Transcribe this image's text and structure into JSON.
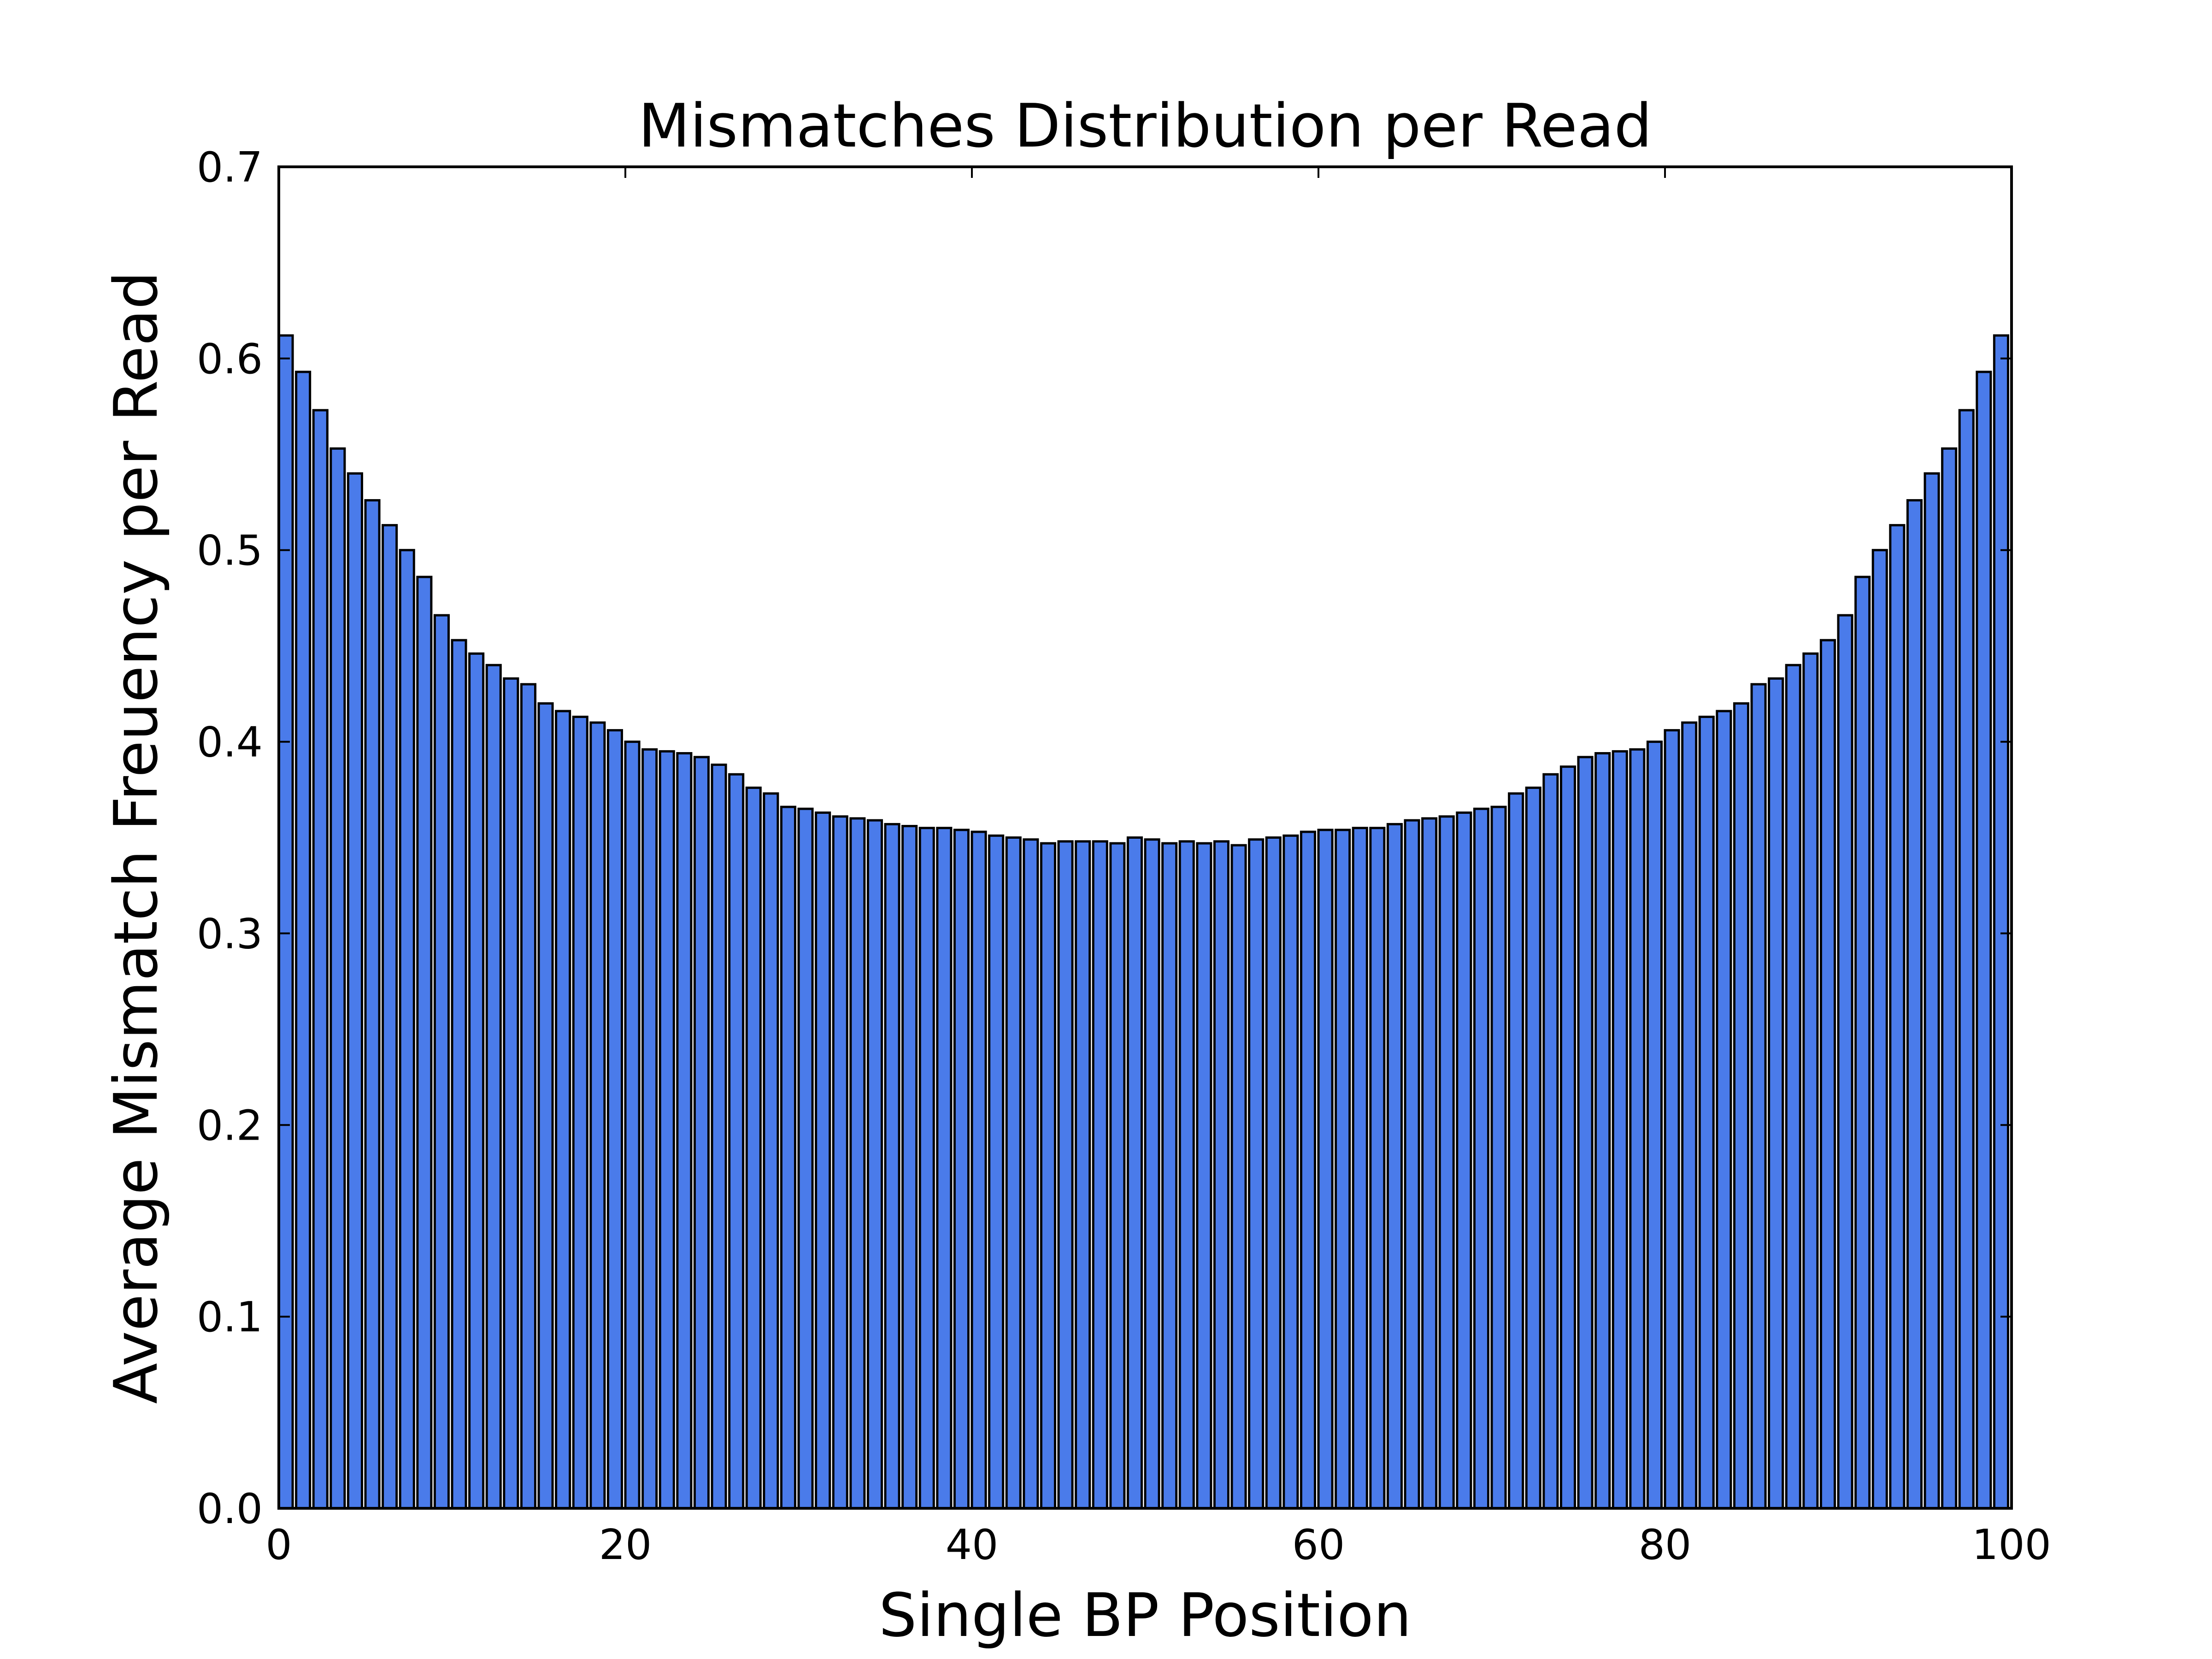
{
  "chart_data": {
    "type": "bar",
    "title": "Mismatches Distribution per Read",
    "xlabel": "Single BP Position",
    "ylabel": "Average Mismatch Freuency per Read",
    "xlim": [
      0,
      100
    ],
    "ylim": [
      0,
      0.7
    ],
    "xticks": [
      "0",
      "20",
      "40",
      "60",
      "80",
      "100"
    ],
    "yticks": [
      "0.0",
      "0.1",
      "0.2",
      "0.3",
      "0.4",
      "0.5",
      "0.6",
      "0.7"
    ],
    "grid": false,
    "bar_color": "#4a7bea",
    "edge_color": "#000000",
    "x": [
      0,
      1,
      2,
      3,
      4,
      5,
      6,
      7,
      8,
      9,
      10,
      11,
      12,
      13,
      14,
      15,
      16,
      17,
      18,
      19,
      20,
      21,
      22,
      23,
      24,
      25,
      26,
      27,
      28,
      29,
      30,
      31,
      32,
      33,
      34,
      35,
      36,
      37,
      38,
      39,
      40,
      41,
      42,
      43,
      44,
      45,
      46,
      47,
      48,
      49,
      50,
      51,
      52,
      53,
      54,
      55,
      56,
      57,
      58,
      59,
      60,
      61,
      62,
      63,
      64,
      65,
      66,
      67,
      68,
      69,
      70,
      71,
      72,
      73,
      74,
      75,
      76,
      77,
      78,
      79,
      80,
      81,
      82,
      83,
      84,
      85,
      86,
      87,
      88,
      89,
      90,
      91,
      92,
      93,
      94,
      95,
      96,
      97,
      98,
      99
    ],
    "values": [
      0.612,
      0.593,
      0.573,
      0.553,
      0.54,
      0.526,
      0.513,
      0.5,
      0.486,
      0.466,
      0.453,
      0.446,
      0.44,
      0.433,
      0.43,
      0.42,
      0.416,
      0.413,
      0.41,
      0.406,
      0.4,
      0.396,
      0.395,
      0.394,
      0.392,
      0.388,
      0.383,
      0.376,
      0.373,
      0.366,
      0.365,
      0.363,
      0.361,
      0.36,
      0.359,
      0.357,
      0.356,
      0.355,
      0.355,
      0.354,
      0.353,
      0.351,
      0.35,
      0.349,
      0.347,
      0.348,
      0.348,
      0.348,
      0.347,
      0.35,
      0.349,
      0.347,
      0.348,
      0.347,
      0.348,
      0.346,
      0.349,
      0.35,
      0.351,
      0.353,
      0.354,
      0.354,
      0.355,
      0.355,
      0.357,
      0.359,
      0.36,
      0.361,
      0.363,
      0.365,
      0.366,
      0.373,
      0.376,
      0.383,
      0.387,
      0.392,
      0.394,
      0.395,
      0.396,
      0.4,
      0.406,
      0.41,
      0.413,
      0.416,
      0.42,
      0.43,
      0.433,
      0.44,
      0.446,
      0.453,
      0.466,
      0.486,
      0.5,
      0.513,
      0.526,
      0.54,
      0.553,
      0.573,
      0.593,
      0.612
    ]
  }
}
